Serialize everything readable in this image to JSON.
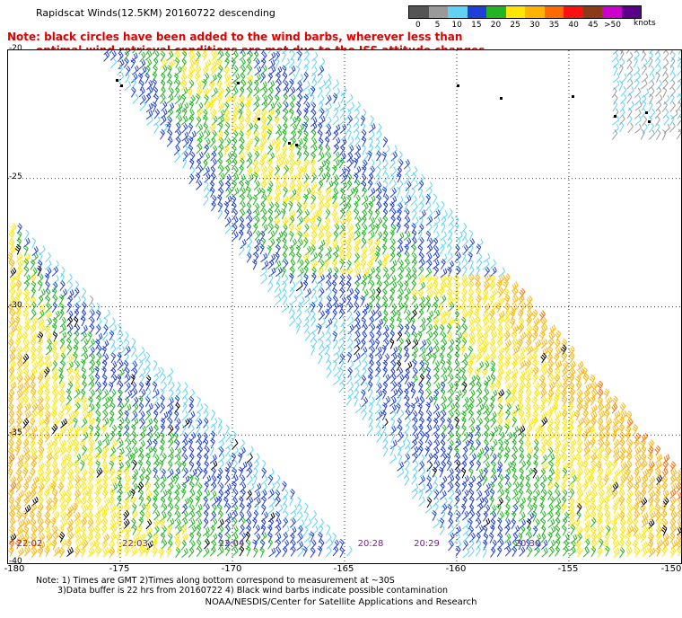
{
  "title": "Rapidscat Winds(12.5KM) 20160722 descending",
  "note_line1": "Note: black circles have been added to the wind barbs, wherever less than",
  "note_line2": "optimal wind retrieval conditions are met due to the ISS attitude changes.",
  "legend": {
    "ticks": [
      "0",
      "5",
      "10",
      "15",
      "20",
      "25",
      "30",
      "35",
      "40",
      "45",
      ">50"
    ],
    "units": "knots",
    "colors": [
      "#555555",
      "#9a9a9a",
      "#5fd2f5",
      "#1f3fd9",
      "#22b422",
      "#ffe600",
      "#ffb300",
      "#ff6a00",
      "#ff1010",
      "#8b3a1a",
      "#cc00cc",
      "#5a008a"
    ]
  },
  "map": {
    "lat_labels": [
      "-20",
      "-25",
      "-30",
      "-35",
      "-40"
    ],
    "lon_labels": [
      "-180",
      "-175",
      "-170",
      "-165",
      "-160",
      "-155",
      "-150"
    ],
    "lon_range": [
      -180,
      -150
    ],
    "lat_range": [
      -20,
      -40
    ],
    "time_labels": [
      "22:02",
      "22:03",
      "22:04",
      "20:28",
      "20:29",
      "20:30"
    ]
  },
  "footer": {
    "line1": "Note: 1) Times are GMT  2)Times along bottom correspond to measurement at ~30S",
    "line2": "3)Data buffer is 22 hrs from 20160722  4) Black wind barbs indicate possible contamination"
  },
  "credit": "NOAA/NESDIS/Center for Satellite Applications and Research"
}
